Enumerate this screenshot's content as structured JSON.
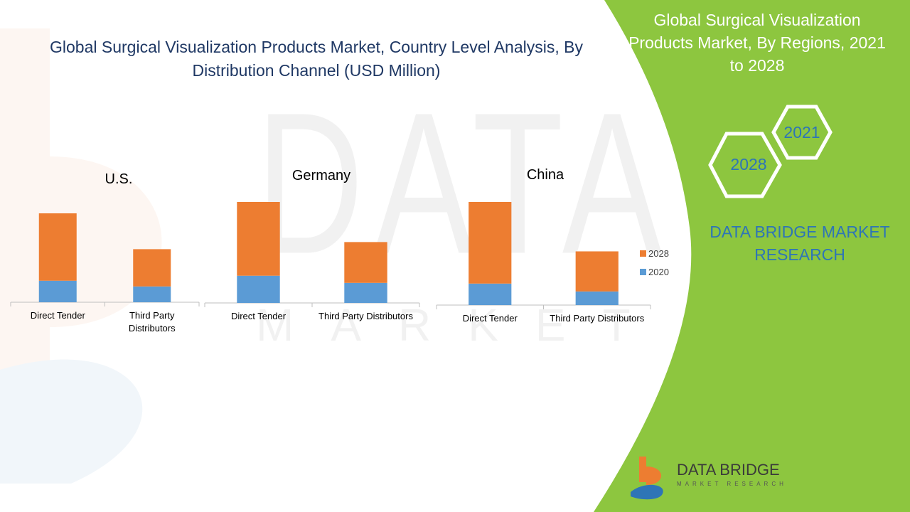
{
  "title": "Global Surgical Visualization Products Market, Country Level Analysis, By Distribution Channel  (USD Million)",
  "panel": {
    "title": "Global Surgical Visualization Products Market, By Regions, 2021 to 2028",
    "hex_top": "2021",
    "hex_bottom": "2028",
    "brand": "DATA BRIDGE MARKET RESEARCH",
    "accent_color": "#8dc63f"
  },
  "logo": {
    "name": "DATA BRIDGE",
    "tagline": "MARKET RESEARCH"
  },
  "watermark": {
    "main": "DATA BRIDGE",
    "sub": "MARKET RESEARCH"
  },
  "chart_data": [
    {
      "type": "bar",
      "stacked": true,
      "title": "U.S.",
      "categories": [
        "Direct Tender",
        "Third Party Distributors"
      ],
      "series": [
        {
          "name": "2020",
          "values": [
            30,
            22
          ],
          "color": "#5b9bd5"
        },
        {
          "name": "2028",
          "values": [
            94,
            52
          ],
          "color": "#ed7d31"
        }
      ],
      "ylim": [
        0,
        124
      ]
    },
    {
      "type": "bar",
      "stacked": true,
      "title": "Germany",
      "categories": [
        "Direct Tender",
        "Third Party Distributors"
      ],
      "series": [
        {
          "name": "2020",
          "values": [
            38,
            28
          ],
          "color": "#5b9bd5"
        },
        {
          "name": "2028",
          "values": [
            103,
            57
          ],
          "color": "#ed7d31"
        }
      ],
      "ylim": [
        0,
        141
      ]
    },
    {
      "type": "bar",
      "stacked": true,
      "title": "China",
      "categories": [
        "Direct Tender",
        "Third Party Distributors"
      ],
      "series": [
        {
          "name": "2020",
          "values": [
            30,
            19
          ],
          "color": "#5b9bd5"
        },
        {
          "name": "2028",
          "values": [
            114,
            56
          ],
          "color": "#ed7d31"
        }
      ],
      "ylim": [
        0,
        144
      ],
      "legend": "right"
    }
  ]
}
